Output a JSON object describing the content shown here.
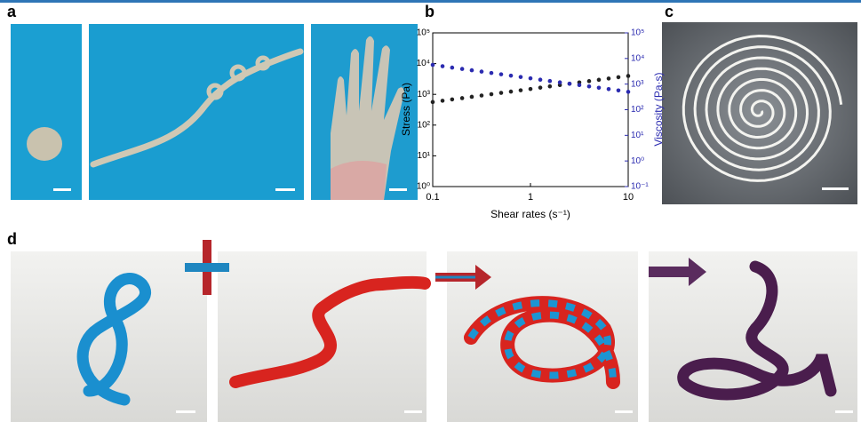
{
  "panel_labels": [
    "a",
    "b",
    "c",
    "d"
  ],
  "chart_data": {
    "type": "scatter",
    "xlabel": "Shear rates (s⁻¹)",
    "ylabel": "Stress (Pa)",
    "y2label": "Viscosity (Pa·s)",
    "xscale": "log",
    "yscale": "log",
    "y2scale": "log",
    "x": [
      0.1,
      0.126,
      0.158,
      0.2,
      0.251,
      0.316,
      0.398,
      0.501,
      0.631,
      0.794,
      1,
      1.26,
      1.58,
      2,
      2.51,
      3.16,
      3.98,
      5.01,
      6.31,
      7.94,
      10
    ],
    "series": [
      {
        "color": "#222222",
        "values": [
          562,
          620,
          684,
          754,
          832,
          917,
          1012,
          1116,
          1230,
          1357,
          1496,
          1650,
          1820,
          2007,
          2213,
          2441,
          2692,
          2969,
          3273,
          3610,
          3981
        ]
      },
      {
        "color": "#2b2bb0",
        "axis": "y2",
        "values": [
          5623,
          4984,
          4416,
          3913,
          3467,
          3073,
          2723,
          2413,
          2138,
          1895,
          1679,
          1488,
          1318,
          1168,
          1035,
          917,
          813,
          720,
          638,
          566,
          501
        ]
      }
    ],
    "xlim": [
      0.1,
      10
    ],
    "xticks": [
      0.1,
      1,
      10
    ],
    "ylim": [
      1,
      100000
    ],
    "yticks": [
      {
        "value": 1,
        "label": "10⁰"
      },
      {
        "value": 10,
        "label": "10¹"
      },
      {
        "value": 100,
        "label": "10²"
      },
      {
        "value": 1000,
        "label": "10³"
      },
      {
        "value": 10000,
        "label": "10⁴"
      },
      {
        "value": 100000,
        "label": "10⁵"
      }
    ],
    "y2lim": [
      0.1,
      100000
    ],
    "y2ticks": [
      {
        "value": 0.1,
        "label": "10⁻¹"
      },
      {
        "value": 1,
        "label": "10⁰"
      },
      {
        "value": 10,
        "label": "10¹"
      },
      {
        "value": 100,
        "label": "10²"
      },
      {
        "value": 1000,
        "label": "10³"
      },
      {
        "value": 10000,
        "label": "10⁴"
      },
      {
        "value": 100000,
        "label": "10⁵"
      }
    ],
    "y2color": "#2b2bb0"
  }
}
